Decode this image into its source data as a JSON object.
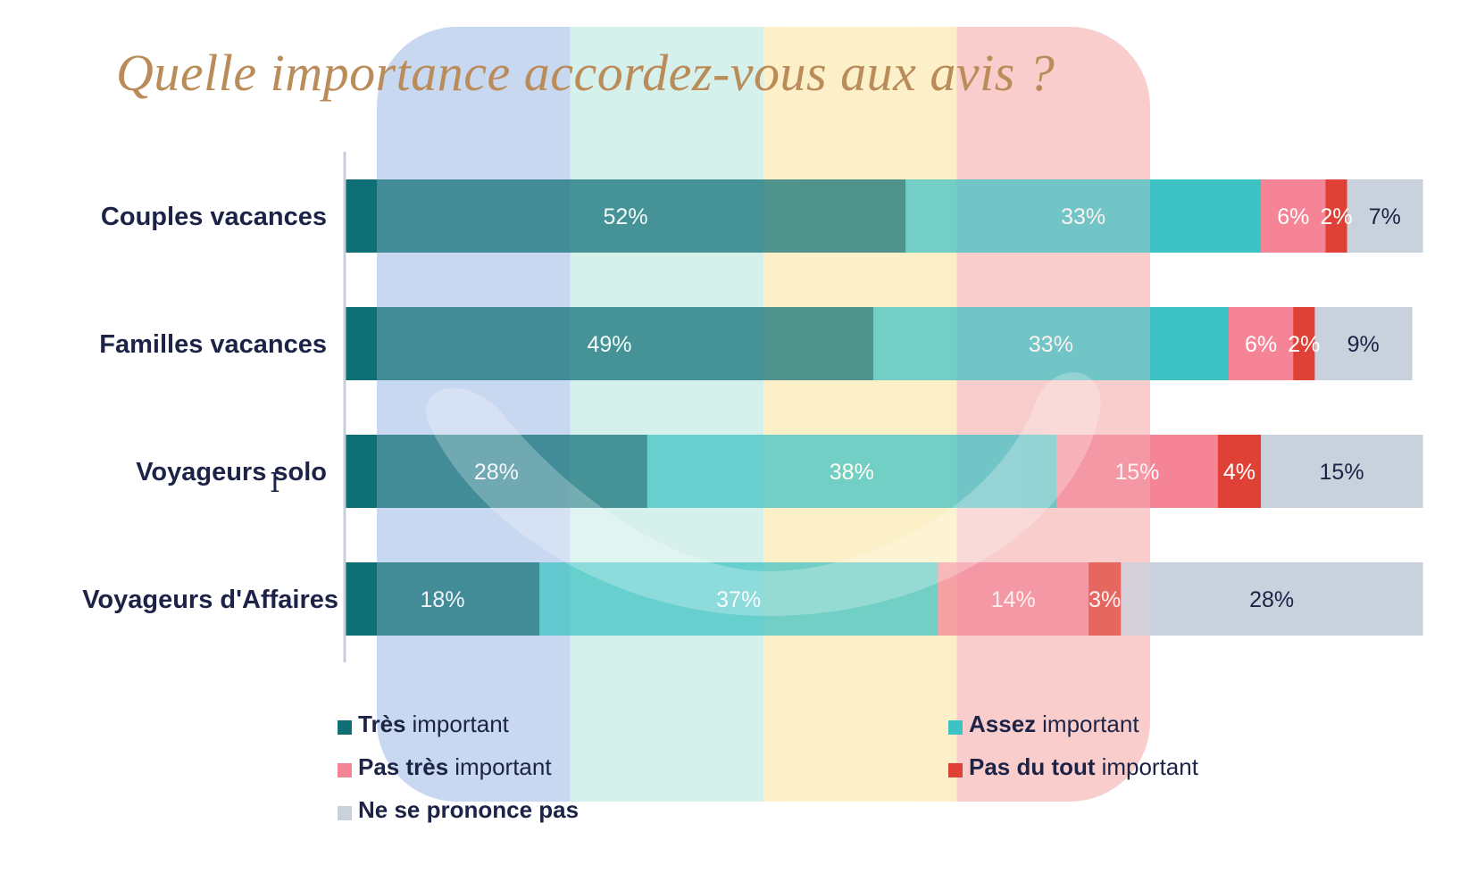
{
  "title": "Quelle importance accordez-vous aux avis ?",
  "chart_data": {
    "type": "bar",
    "orientation": "horizontal",
    "stacked": true,
    "title": "Quelle importance accordez-vous aux avis ?",
    "categories": [
      "Couples vacances",
      "Familles vacances",
      "Voyageurs solo",
      "Voyageurs d'Affaires"
    ],
    "series": [
      {
        "name": "Très important",
        "color": "#0f6f77",
        "values": [
          52,
          49,
          28,
          18
        ]
      },
      {
        "name": "Assez important",
        "color": "#3ec3c4",
        "values": [
          33,
          33,
          38,
          37
        ]
      },
      {
        "name": "Pas très important",
        "color": "#f48496",
        "values": [
          6,
          6,
          15,
          14
        ]
      },
      {
        "name": "Pas du tout important",
        "color": "#e04136",
        "values": [
          2,
          2,
          4,
          3
        ]
      },
      {
        "name": "Ne se prononce pas",
        "color": "#c8d1dc",
        "values": [
          7,
          9,
          15,
          28
        ]
      }
    ],
    "value_labels": [
      [
        "52%",
        "33%",
        "6%",
        "2%",
        "7%"
      ],
      [
        "49%",
        "33%",
        "6%",
        "2%",
        "9%"
      ],
      [
        "28%",
        "38%",
        "15%",
        "4%",
        "15%"
      ],
      [
        "18%",
        "37%",
        "14%",
        "3%",
        "28%"
      ]
    ],
    "xlim": [
      0,
      100
    ],
    "grid": false
  },
  "legend": [
    {
      "bold": "Très",
      "rest": "important",
      "color": "#0f6f77"
    },
    {
      "bold": "Assez",
      "rest": "important",
      "color": "#3ec3c4"
    },
    {
      "bold": "Pas très",
      "rest": "important",
      "color": "#f48496"
    },
    {
      "bold": "Pas du tout",
      "rest": "important",
      "color": "#e04136"
    },
    {
      "bold": "Ne se prononce pas",
      "rest": "",
      "color": "#c8d1dc"
    }
  ],
  "colors": {
    "title": "#b98c5a",
    "text": "#1d2347",
    "axis": "#c8cfd8",
    "watermark_blue": "#c8d8f1",
    "watermark_mint": "#d6f1ec",
    "watermark_yellow": "#fdf0c8",
    "watermark_pink": "#f9cdcc"
  }
}
